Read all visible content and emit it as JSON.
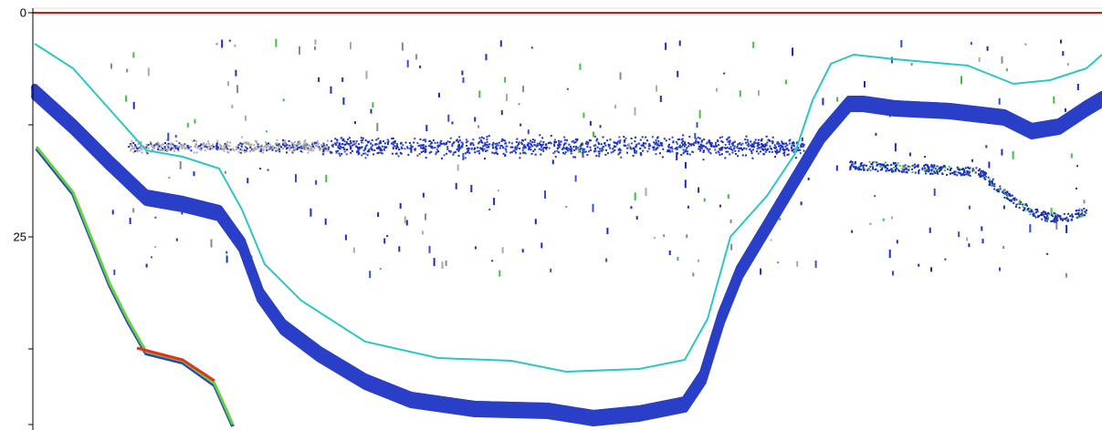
{
  "axis": {
    "ticks": [
      "0",
      "25"
    ]
  }
}
